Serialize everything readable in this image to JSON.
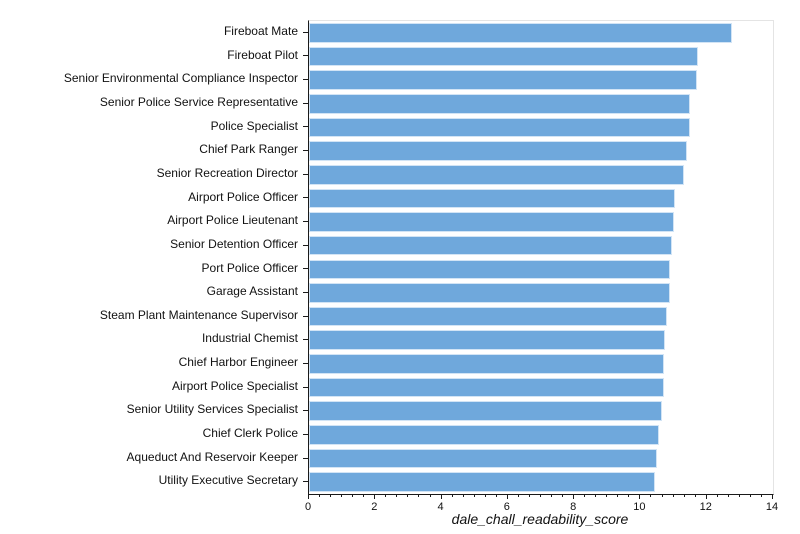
{
  "chart_data": {
    "type": "bar",
    "orientation": "horizontal",
    "title": "",
    "xlabel": "dale_chall_readability_score",
    "ylabel": "",
    "xlim": [
      0,
      14
    ],
    "x_major_ticks": [
      0,
      2,
      4,
      6,
      8,
      10,
      12,
      14
    ],
    "x_minor_divisions_per_major": 6,
    "grid": false,
    "legend": null,
    "bar_color": "#6fa8dc",
    "bar_edge_color": "#d2e4f5",
    "spine_color": "#1a1a1a",
    "faint_spine_color": "#e4e4e4",
    "categories": [
      "Fireboat Mate",
      "Fireboat Pilot",
      "Senior Environmental Compliance Inspector",
      "Senior Police Service Representative",
      "Police Specialist",
      "Chief Park Ranger",
      "Senior Recreation Director",
      "Airport Police Officer",
      "Airport Police Lieutenant",
      "Senior Detention Officer",
      "Port Police Officer",
      "Garage Assistant",
      "Steam Plant Maintenance Supervisor",
      "Industrial Chemist",
      "Chief Harbor Engineer",
      "Airport Police Specialist",
      "Senior Utility Services Specialist",
      "Chief Clerk Police",
      "Aqueduct And Reservoir Keeper",
      "Utility Executive Secretary"
    ],
    "values": [
      12.75,
      11.75,
      11.7,
      11.5,
      11.5,
      11.4,
      11.3,
      11.05,
      11.0,
      10.95,
      10.9,
      10.9,
      10.8,
      10.75,
      10.7,
      10.7,
      10.65,
      10.55,
      10.5,
      10.45
    ]
  }
}
